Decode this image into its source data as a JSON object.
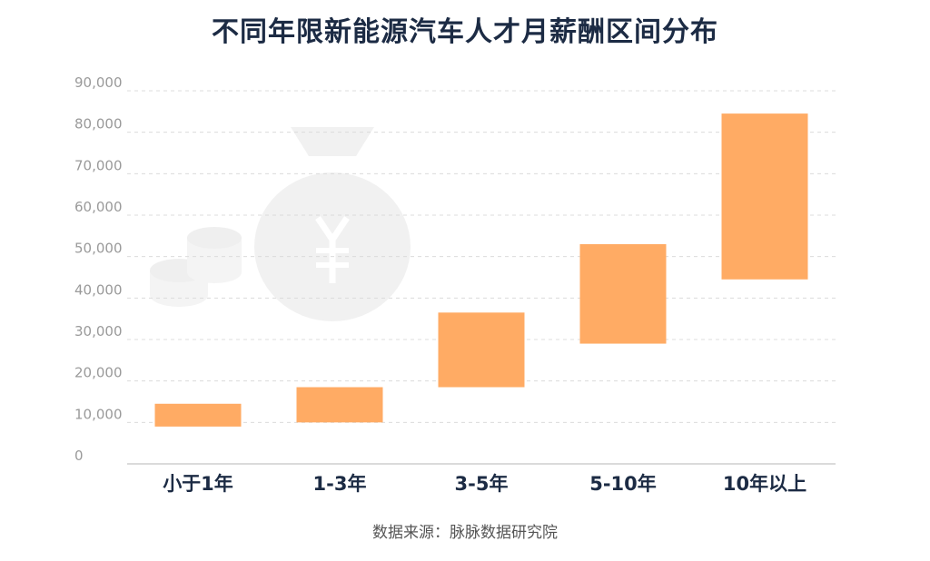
{
  "chart_data": {
    "type": "bar",
    "title": "不同年限新能源汽车人才月薪酬区间分布",
    "categories": [
      "小于1年",
      "1-3年",
      "3-5年",
      "5-10年",
      "10年以上"
    ],
    "ranges": [
      {
        "low": 9000,
        "high": 14500
      },
      {
        "low": 10000,
        "high": 18500
      },
      {
        "low": 18500,
        "high": 36500
      },
      {
        "low": 29000,
        "high": 53000
      },
      {
        "low": 44500,
        "high": 84500
      }
    ],
    "ylim": [
      0,
      90000
    ],
    "yticks": [
      "0",
      "10,000",
      "20,000",
      "30,000",
      "40,000",
      "50,000",
      "60,000",
      "70,000",
      "80,000",
      "90,000"
    ],
    "ytick_values": [
      0,
      10000,
      20000,
      30000,
      40000,
      50000,
      60000,
      70000,
      80000,
      90000
    ],
    "grid": true,
    "bar_color": "#ffab64",
    "xlabel": "",
    "ylabel": ""
  },
  "source": "数据来源：脉脉数据研究院"
}
